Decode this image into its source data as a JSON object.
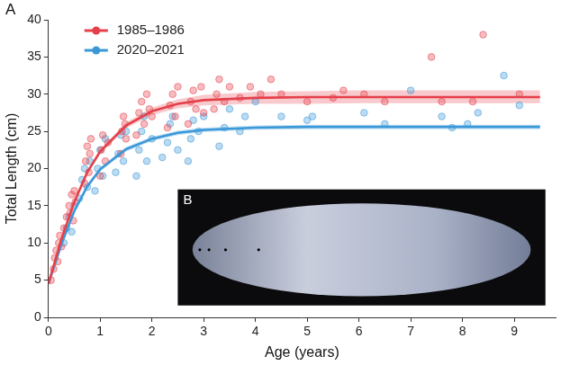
{
  "chart_data": {
    "type": "scatter",
    "panel_label": "A",
    "inset_label": "B",
    "x_label": "Age (years)",
    "y_label": "Total Length (cm)",
    "xlim": [
      0,
      9.8
    ],
    "xticks": [
      0,
      1,
      2,
      3,
      4,
      5,
      6,
      7,
      8,
      9
    ],
    "ylim": [
      0,
      40
    ],
    "yticks": [
      0,
      5,
      10,
      15,
      20,
      25,
      30,
      35,
      40
    ],
    "grid": false,
    "legend": "upper left",
    "series": [
      {
        "name": "1985–1986",
        "color": "#e5404a",
        "marker": "circle",
        "x": [
          0.05,
          0.1,
          0.12,
          0.15,
          0.18,
          0.2,
          0.22,
          0.25,
          0.3,
          0.35,
          0.4,
          0.42,
          0.45,
          0.48,
          0.5,
          0.52,
          0.7,
          0.72,
          0.75,
          0.78,
          0.8,
          0.82,
          1.0,
          1.02,
          1.05,
          1.1,
          1.15,
          1.4,
          1.42,
          1.45,
          1.5,
          1.48,
          1.7,
          1.75,
          1.8,
          1.85,
          1.9,
          1.95,
          2.0,
          2.3,
          2.35,
          2.4,
          2.45,
          2.5,
          2.7,
          2.75,
          2.8,
          2.85,
          2.95,
          3.0,
          3.2,
          3.25,
          3.3,
          3.4,
          3.5,
          3.7,
          3.9,
          4.1,
          4.3,
          4.5,
          5.0,
          5.5,
          5.7,
          6.1,
          6.5,
          7.4,
          7.6,
          8.2,
          8.4,
          9.1
        ],
        "values": [
          5,
          6.5,
          8,
          9,
          7.5,
          10,
          11,
          9.5,
          12,
          13.5,
          15,
          14,
          16.5,
          13,
          17,
          15.5,
          18,
          21,
          23,
          19.5,
          22,
          24,
          19,
          22.5,
          24.5,
          21,
          23.5,
          22,
          25,
          27,
          24,
          26,
          24.5,
          27.5,
          29,
          26,
          30,
          28,
          27,
          25.5,
          28.5,
          30,
          27,
          31,
          26,
          29,
          30.5,
          28,
          31,
          27.5,
          28,
          30,
          32,
          29,
          31,
          29.5,
          31,
          30,
          32,
          30,
          29,
          29.5,
          30.5,
          30,
          29,
          35,
          29,
          29,
          38,
          30
        ],
        "fit_x": [
          0,
          0.25,
          0.5,
          0.75,
          1,
          1.5,
          2,
          2.5,
          3,
          4,
          5,
          6,
          7,
          8,
          9,
          9.5
        ],
        "fit": [
          4.5,
          10.5,
          15.5,
          19.5,
          22.3,
          25.8,
          27.7,
          28.7,
          29.2,
          29.5,
          29.6,
          29.6,
          29.6,
          29.6,
          29.6,
          29.6
        ],
        "fit_lower": [
          4.3,
          10.2,
          15.2,
          19.2,
          22.0,
          25.4,
          27.2,
          28.1,
          28.5,
          28.7,
          28.7,
          28.8,
          28.8,
          28.8,
          28.8,
          28.8
        ],
        "fit_upper": [
          4.7,
          10.8,
          15.8,
          19.8,
          22.6,
          26.2,
          28.2,
          29.3,
          29.9,
          30.3,
          30.4,
          30.5,
          30.5,
          30.5,
          30.5,
          30.5
        ]
      },
      {
        "name": "2020–2021",
        "color": "#3a98d8",
        "marker": "circle",
        "x": [
          0.3,
          0.35,
          0.4,
          0.45,
          0.5,
          0.6,
          0.65,
          0.7,
          0.75,
          0.8,
          0.9,
          0.95,
          1.0,
          1.05,
          1.1,
          1.3,
          1.35,
          1.4,
          1.45,
          1.5,
          1.7,
          1.75,
          1.8,
          1.85,
          1.9,
          2.0,
          2.2,
          2.3,
          2.35,
          2.4,
          2.5,
          2.7,
          2.75,
          2.8,
          2.9,
          3.0,
          3.3,
          3.4,
          3.5,
          3.7,
          3.8,
          4.0,
          4.5,
          5.0,
          5.1,
          6.1,
          6.5,
          7.0,
          7.6,
          7.8,
          8.1,
          8.3,
          8.8,
          9.1
        ],
        "values": [
          10,
          12,
          13.5,
          11.5,
          15,
          16,
          18.5,
          20,
          17.5,
          21,
          17,
          20,
          22.5,
          19,
          24,
          19.5,
          22,
          24.5,
          21,
          25,
          19,
          22.5,
          25,
          27,
          21,
          24,
          21.5,
          23.5,
          26,
          27,
          22.5,
          21,
          24,
          26.5,
          25,
          27,
          23,
          25.5,
          28,
          25,
          27,
          29,
          27,
          26.5,
          27,
          27.5,
          26,
          30.5,
          27,
          25.5,
          26,
          27.5,
          32.5,
          28.5
        ],
        "fit_x": [
          0,
          0.25,
          0.5,
          0.75,
          1,
          1.5,
          2,
          2.5,
          3,
          4,
          5,
          6,
          7,
          8,
          9,
          9.5
        ],
        "fit": [
          4.5,
          9.8,
          14.3,
          17.6,
          19.9,
          22.6,
          24.0,
          24.8,
          25.2,
          25.5,
          25.6,
          25.6,
          25.6,
          25.6,
          25.6,
          25.6
        ],
        "fit_lower": [
          4.4,
          9.6,
          14.0,
          17.3,
          19.6,
          22.3,
          23.7,
          24.5,
          24.9,
          25.2,
          25.3,
          25.3,
          25.3,
          25.3,
          25.3,
          25.3
        ],
        "fit_upper": [
          4.6,
          10.0,
          14.6,
          17.9,
          20.2,
          22.9,
          24.3,
          25.1,
          25.5,
          25.8,
          25.9,
          25.9,
          25.9,
          25.9,
          25.9,
          25.9
        ]
      }
    ]
  }
}
